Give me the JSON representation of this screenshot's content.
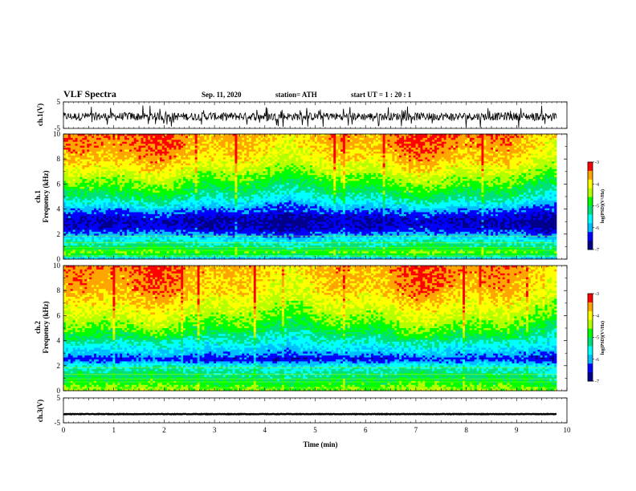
{
  "header": {
    "title": "VLF Spectra",
    "date": "Sep. 11, 2020",
    "station": "station= ATH",
    "start": "start  UT =   1 : 20 : 1"
  },
  "panels": {
    "ch1_wave": {
      "ylabel": "ch.1(V)"
    },
    "ch1_spec": {
      "ylabel": "ch.1\nFrequency (kHz)"
    },
    "ch2_spec": {
      "ylabel": "ch.2\nFrequency (kHz)"
    },
    "ch3_wave": {
      "ylabel": "ch.3(V)"
    }
  },
  "colorbar": {
    "label": "log(PSD)(V²/Hz)",
    "ticks": [
      "-3",
      "-4",
      "-5",
      "-6",
      "-7"
    ]
  },
  "colors": {
    "spectrum": [
      "#00008b",
      "#0000ff",
      "#00bfff",
      "#00ffff",
      "#00e07a",
      "#00ff00",
      "#b4ff00",
      "#ffff00",
      "#ffa500",
      "#ff0000"
    ],
    "trace": "#000000"
  },
  "chart_data": [
    {
      "type": "line",
      "panel": "ch1_wave",
      "ylabel": "ch.1(V)",
      "ylim": [
        -5,
        5
      ],
      "xlim": [
        0,
        10
      ],
      "yticks": [
        "5",
        "-5"
      ],
      "trace_level": -0.5,
      "trace_amplitude": 3.0
    },
    {
      "type": "heatmap",
      "panel": "ch1_spec",
      "ylabel": "ch.1 Frequency (kHz)",
      "ylim": [
        0,
        10
      ],
      "xlim": [
        0,
        10
      ],
      "yticks": [
        "0",
        "2",
        "4",
        "6",
        "8",
        "10"
      ],
      "colorbar_range": [
        -7,
        -3
      ],
      "freq_profile_kHz": [
        0,
        0.5,
        1,
        1.5,
        2,
        2.5,
        3,
        3.5,
        4,
        4.5,
        5,
        6,
        7,
        8,
        9,
        10
      ],
      "freq_profile_logpsd": [
        -6.0,
        -4.6,
        -5.2,
        -5.6,
        -6.2,
        -6.6,
        -6.7,
        -6.5,
        -6.1,
        -5.7,
        -5.3,
        -4.8,
        -4.3,
        -3.9,
        -3.7,
        -3.6
      ]
    },
    {
      "type": "heatmap",
      "panel": "ch2_spec",
      "ylabel": "ch.2 Frequency (kHz)",
      "ylim": [
        0,
        10
      ],
      "xlim": [
        0,
        10
      ],
      "yticks": [
        "0",
        "2",
        "4",
        "6",
        "8",
        "10"
      ],
      "colorbar_range": [
        -7,
        -3
      ],
      "freq_profile_kHz": [
        0,
        0.5,
        1,
        1.5,
        2,
        2.5,
        3,
        3.5,
        4,
        4.5,
        5,
        6,
        7,
        8,
        9,
        10
      ],
      "freq_profile_logpsd": [
        -4.5,
        -4.8,
        -5.1,
        -5.3,
        -5.6,
        -6.5,
        -6.0,
        -5.7,
        -5.4,
        -5.1,
        -4.8,
        -4.4,
        -4.1,
        -3.8,
        -3.7,
        -3.6
      ]
    },
    {
      "type": "line",
      "panel": "ch3_wave",
      "ylabel": "ch.3(V)",
      "ylim": [
        -5,
        5
      ],
      "xlim": [
        0,
        10
      ],
      "yticks": [
        "5",
        "-5"
      ],
      "trace_level": -1.5,
      "trace_amplitude": 0.2
    }
  ],
  "xaxis": {
    "label": "Time (min)",
    "ticks": [
      "0",
      "1",
      "2",
      "3",
      "4",
      "5",
      "6",
      "7",
      "8",
      "9",
      "10"
    ]
  }
}
